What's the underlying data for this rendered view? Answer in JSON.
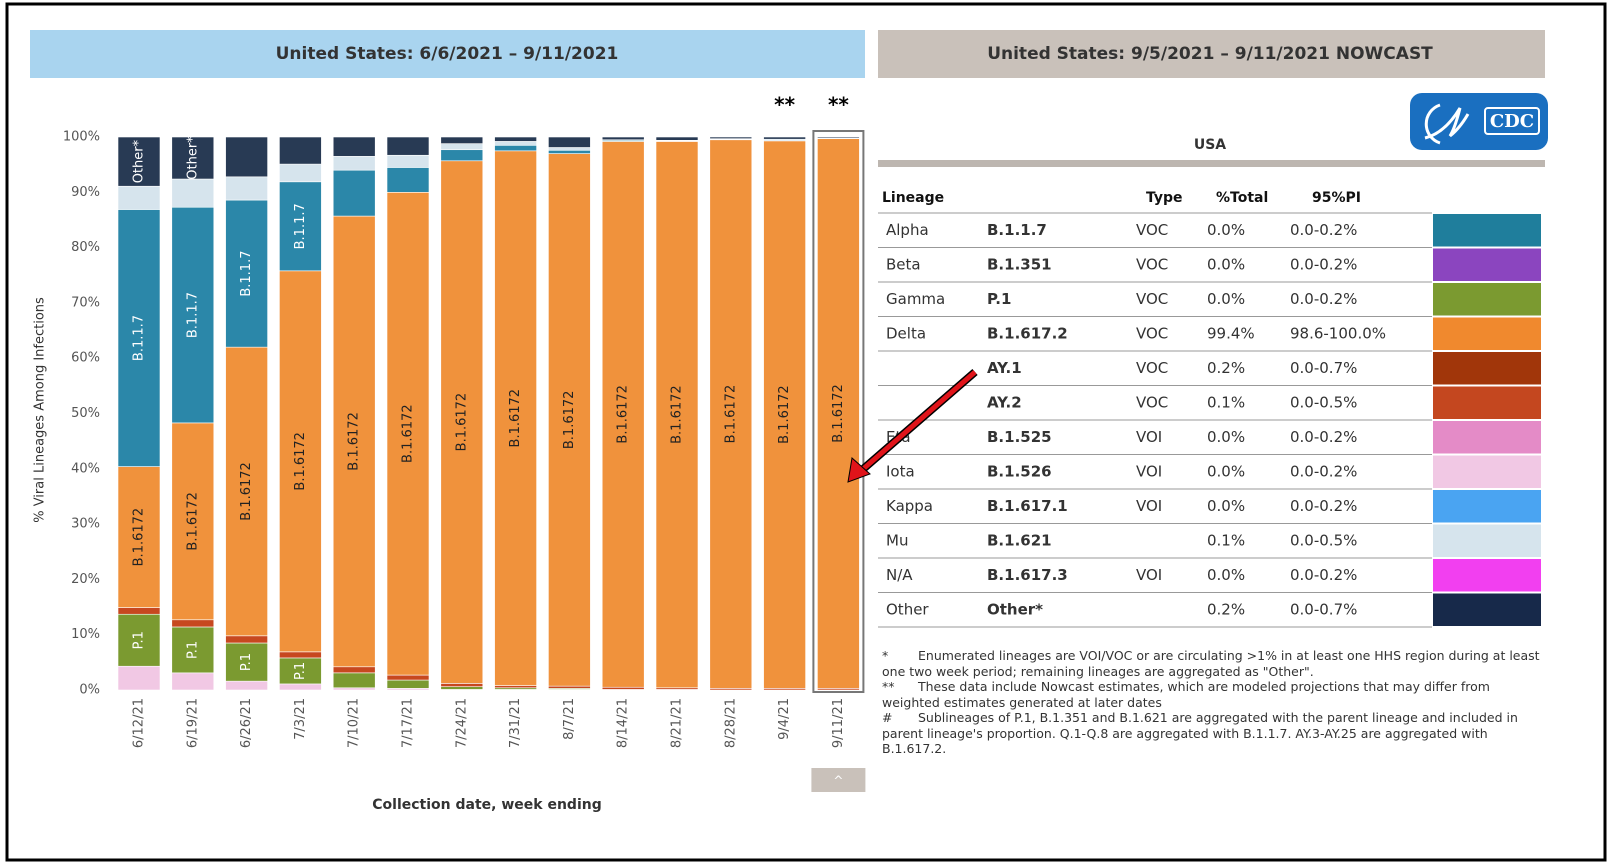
{
  "chart_data": {
    "type": "stacked_bar",
    "title": "United States: 6/6/2021 – 9/11/2021",
    "ylabel": "% Viral Lineages Among Infections",
    "xlabel": "Collection date, week ending",
    "categories": [
      "6/12/21",
      "6/19/21",
      "6/26/21",
      "7/3/21",
      "7/10/21",
      "7/17/21",
      "7/24/21",
      "7/31/21",
      "8/7/21",
      "8/14/21",
      "8/21/21",
      "8/28/21",
      "9/4/21",
      "9/11/21"
    ],
    "series": [
      {
        "color": "#f1c8e4",
        "values": [
          4.3,
          3.1,
          1.6,
          1.1,
          0.4,
          0.3,
          0.1,
          0.1,
          0.1,
          0,
          0,
          0,
          0,
          0
        ]
      },
      {
        "color": "#7b9a30",
        "values": [
          9.4,
          8.3,
          6.9,
          4.7,
          2.7,
          1.5,
          0.5,
          0.3,
          0.2,
          0.1,
          0.1,
          0,
          0,
          0
        ],
        "bar_labels": [
          "P.1",
          "P.1",
          "P.1",
          "P.1",
          null,
          null,
          null,
          null,
          null,
          null,
          null,
          null,
          null,
          null
        ]
      },
      {
        "color": "#c7481f",
        "values": [
          1.2,
          1.3,
          1.3,
          1.1,
          1.1,
          0.9,
          0.6,
          0.4,
          0.4,
          0.4,
          0.3,
          0.3,
          0.3,
          0.3
        ]
      },
      {
        "color": "#f0923c",
        "values": [
          25.5,
          35.6,
          52.2,
          68.9,
          81.5,
          87.3,
          94.5,
          96.7,
          96.3,
          98.7,
          98.8,
          99.2,
          99.0,
          99.4
        ],
        "bar_labels": [
          "B.1.6172",
          "B.1.6172",
          "B.1.6172",
          "B.1.6172",
          "B.1.6172",
          "B.1.6172",
          "B.1.6172",
          "B.1.6172",
          "B.1.6172",
          "B.1.6172",
          "B.1.6172",
          "B.1.6172",
          "B.1.6172",
          "B.1.6172"
        ]
      },
      {
        "color": "#2b87a9",
        "values": [
          46.5,
          39.0,
          26.6,
          16.1,
          8.3,
          4.5,
          2.0,
          1.0,
          0.6,
          0.2,
          0.1,
          0.1,
          0,
          0
        ],
        "bar_labels": [
          "B.1.1.7",
          "B.1.1.7",
          "B.1.1.7",
          "B.1.1.7",
          null,
          null,
          null,
          null,
          null,
          null,
          null,
          null,
          null,
          null
        ]
      },
      {
        "color": "#d6e4ed",
        "values": [
          4.2,
          5.1,
          4.2,
          3.2,
          2.5,
          2.2,
          1.1,
          0.7,
          0.5,
          0.1,
          0.1,
          0.1,
          0.3,
          0.1
        ]
      },
      {
        "color": "#283a54",
        "values": [
          8.9,
          7.6,
          7.2,
          4.9,
          3.5,
          3.3,
          1.2,
          0.8,
          1.9,
          0.5,
          0.6,
          0.3,
          0.4,
          0.2
        ],
        "bar_labels": [
          "Other*",
          "Other*",
          null,
          null,
          null,
          null,
          null,
          null,
          null,
          null,
          null,
          null,
          null,
          null
        ]
      }
    ],
    "annotations": [
      {
        "text": "**",
        "category": "9/4/21"
      },
      {
        "text": "**",
        "category": "9/11/21"
      }
    ],
    "ylim": [
      0,
      100
    ],
    "yticks": [
      {
        "value": 0,
        "label": "0%"
      },
      {
        "value": 10,
        "label": "10%"
      },
      {
        "value": 20,
        "label": "20%"
      },
      {
        "value": 30,
        "label": "30%"
      },
      {
        "value": 40,
        "label": "40%"
      },
      {
        "value": 50,
        "label": "50%"
      },
      {
        "value": 60,
        "label": "60%"
      },
      {
        "value": 70,
        "label": "70%"
      },
      {
        "value": 80,
        "label": "80%"
      },
      {
        "value": 90,
        "label": "90%"
      },
      {
        "value": 100,
        "label": "100%"
      }
    ],
    "scroll_button": "^"
  },
  "nowcast": {
    "title": "United States: 9/5/2021 – 9/11/2021 NOWCAST",
    "region": "USA",
    "logo": "CDC",
    "table": {
      "header": [
        "Lineage",
        "Type",
        "%Total",
        "95%PI"
      ],
      "rows": [
        {
          "lineage": "Alpha",
          "pango": "B.1.1.7",
          "type": "VOC",
          "total": "0.0%",
          "pi": "0.0-0.2%",
          "color": "#1f7e9c"
        },
        {
          "lineage": "Beta",
          "pango": "B.1.351",
          "type": "VOC",
          "total": "0.0%",
          "pi": "0.0-0.2%",
          "color": "#8b45bf"
        },
        {
          "lineage": "Gamma",
          "pango": "P.1",
          "type": "VOC",
          "total": "0.0%",
          "pi": "0.0-0.2%",
          "color": "#7b9a30"
        },
        {
          "lineage": "Delta",
          "pango": "B.1.617.2",
          "type": "VOC",
          "total": "99.4%",
          "pi": "98.6-100.0%",
          "color": "#f0892e"
        },
        {
          "lineage": null,
          "pango": "AY.1",
          "type": "VOC",
          "total": "0.2%",
          "pi": "0.0-0.7%",
          "color": "#a1360a"
        },
        {
          "lineage": null,
          "pango": "AY.2",
          "type": "VOC",
          "total": "0.1%",
          "pi": "0.0-0.5%",
          "color": "#c4471f"
        },
        {
          "lineage": "Eta",
          "pango": "B.1.525",
          "type": "VOI",
          "total": "0.0%",
          "pi": "0.0-0.2%",
          "color": "#e48bc7"
        },
        {
          "lineage": "Iota",
          "pango": "B.1.526",
          "type": "VOI",
          "total": "0.0%",
          "pi": "0.0-0.2%",
          "color": "#f1c8e4"
        },
        {
          "lineage": "Kappa",
          "pango": "B.1.617.1",
          "type": "VOI",
          "total": "0.0%",
          "pi": "0.0-0.2%",
          "color": "#4aa4f2"
        },
        {
          "lineage": "Mu",
          "pango": "B.1.621",
          "type": null,
          "total": "0.1%",
          "pi": "0.0-0.5%",
          "color": "#d6e4ed"
        },
        {
          "lineage": "N/A",
          "pango": "B.1.617.3",
          "type": "VOI",
          "total": "0.0%",
          "pi": "0.0-0.2%",
          "color": "#f23ff0"
        },
        {
          "lineage": "Other",
          "pango": "Other*",
          "type": null,
          "total": "0.2%",
          "pi": "0.0-0.7%",
          "color": "#17294a"
        }
      ]
    },
    "footnotes": [
      {
        "mark": "*",
        "text": "Enumerated lineages are VOI/VOC or are circulating >1% in at least one HHS region during at least one two week period; remaining lineages are aggregated as \"Other\"."
      },
      {
        "mark": "**",
        "text": "These data include Nowcast estimates, which are modeled projections that may differ from weighted estimates generated at later dates"
      },
      {
        "mark": "#",
        "text": "Sublineages of P.1, B.1.351 and B.1.621 are aggregated with the parent lineage and included in parent lineage's proportion. Q.1-Q.8 are aggregated with B.1.1.7. AY.3-AY.25 are aggregated with B.1.617.2."
      }
    ]
  }
}
